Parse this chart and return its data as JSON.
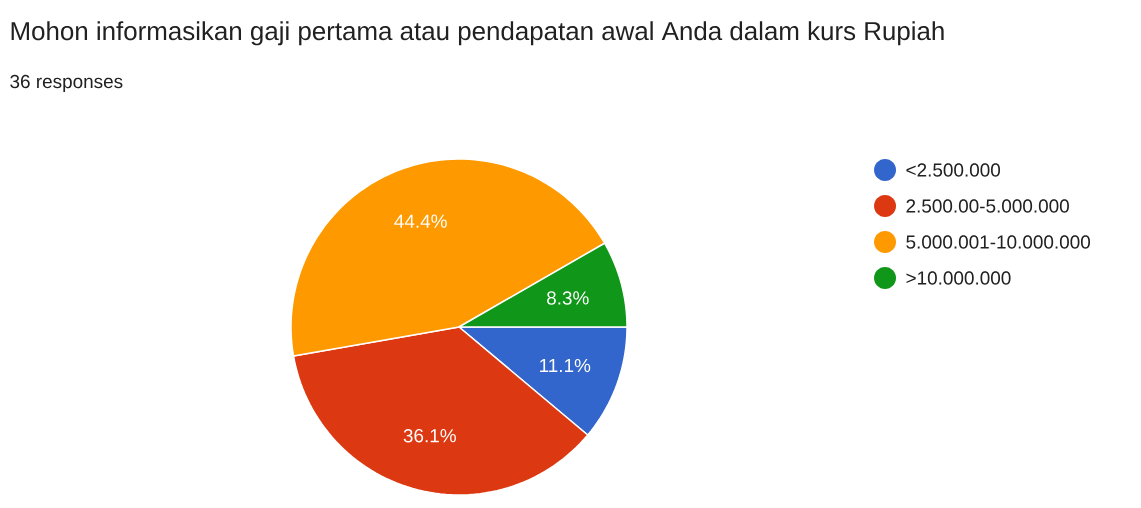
{
  "chart_data": {
    "type": "pie",
    "title": "Mohon informasikan gaji pertama atau pendapatan awal Anda dalam kurs Rupiah",
    "subtitle": "36 responses",
    "categories": [
      "<2.500.000",
      "2.500.00-5.000.000",
      "5.000.001-10.000.000",
      ">10.000.000"
    ],
    "values": [
      11.1,
      36.1,
      44.4,
      8.3
    ],
    "colors": [
      "#3366cc",
      "#dc3912",
      "#ff9900",
      "#109618"
    ],
    "value_labels": [
      "11.1%",
      "36.1%",
      "44.4%",
      "8.3%"
    ],
    "legend": "right"
  }
}
